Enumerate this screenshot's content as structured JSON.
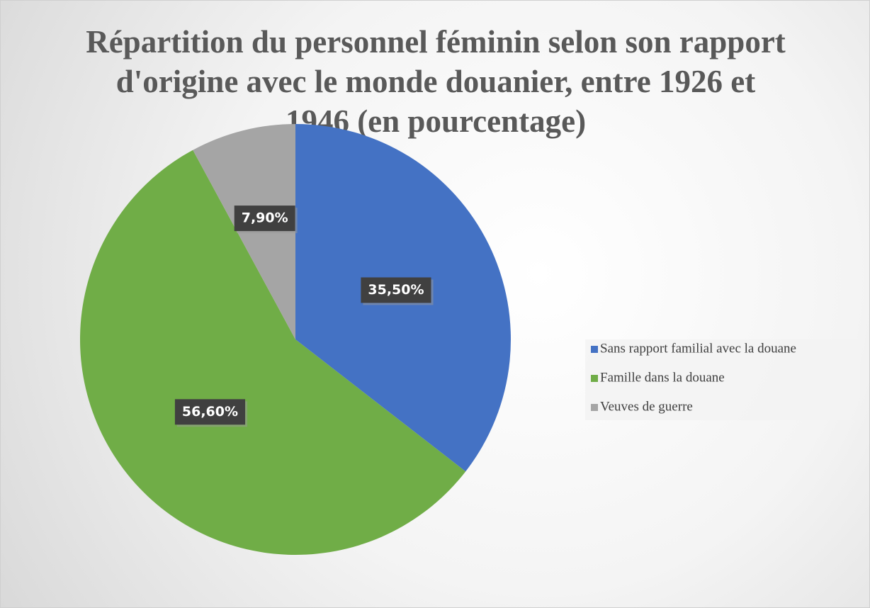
{
  "chart_data": {
    "type": "pie",
    "title": "Répartition du personnel féminin selon son rapport d'origine avec le monde douanier, entre 1926 et 1946 (en pourcentage)",
    "categories": [
      "Sans rapport familial avec la douane",
      "Famille dans la douane",
      "Veuves de guerre"
    ],
    "values": [
      35.5,
      56.6,
      7.9
    ],
    "value_labels": [
      "35,50%",
      "56,60%",
      "7,90%"
    ],
    "colors": [
      "#4472c4",
      "#70ad47",
      "#a5a5a5"
    ],
    "legend": "right"
  }
}
